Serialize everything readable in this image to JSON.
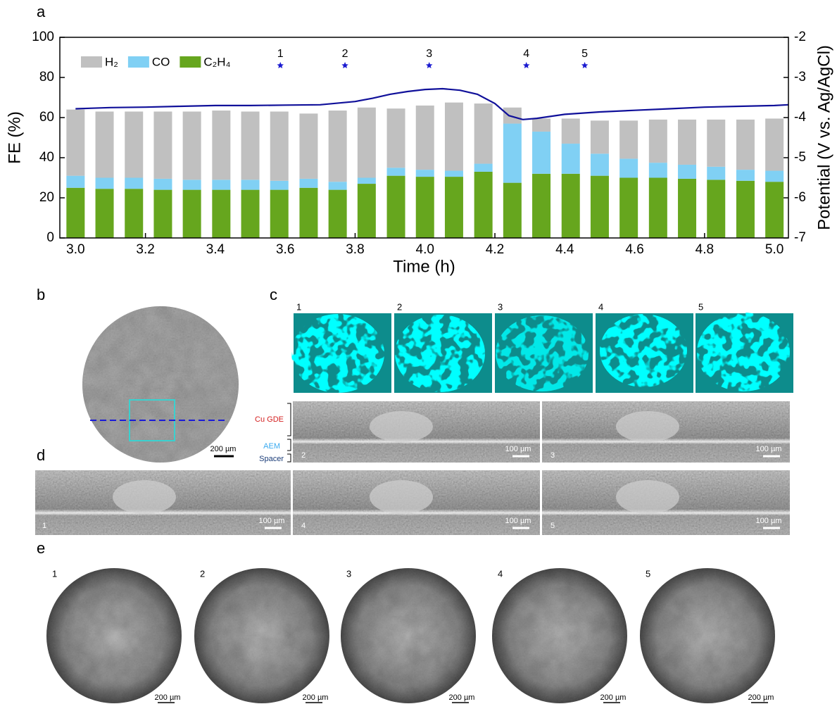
{
  "chart_data": {
    "type": "bar",
    "stacked": true,
    "panel": "a",
    "xlabel": "Time (h)",
    "ylabel": "FE (%)",
    "y2label": "Potential (V vs. Ag/AgCl)",
    "x": [
      3,
      3.083,
      3.167,
      3.25,
      3.333,
      3.417,
      3.5,
      3.583,
      3.667,
      3.75,
      3.833,
      3.917,
      4,
      4.083,
      4.167,
      4.25,
      4.333,
      4.417,
      4.5,
      4.583,
      4.667,
      4.75,
      4.833,
      4.917,
      5
    ],
    "series": [
      {
        "name": "H₂",
        "color": "#c0c0c0",
        "values": [
          33,
          33,
          33,
          33.5,
          34,
          34.5,
          34,
          34.5,
          32.5,
          35.5,
          35,
          29.5,
          32,
          34,
          30,
          8,
          6.5,
          12.5,
          16.5,
          19,
          21.5,
          22.5,
          23.5,
          25,
          26
        ]
      },
      {
        "name": "CO",
        "color": "#80d0f4",
        "values": [
          6,
          5.5,
          5.5,
          5.5,
          5,
          5,
          5,
          4.5,
          4.5,
          4,
          3,
          4,
          3.5,
          3,
          4,
          29.5,
          21,
          15,
          11,
          9.5,
          7.5,
          7,
          6.5,
          5.5,
          5.5
        ]
      },
      {
        "name": "C₂H₄",
        "color": "#66a61e",
        "values": [
          25,
          24.5,
          24.5,
          24,
          24,
          24,
          24,
          24,
          25,
          24,
          27,
          31,
          30.5,
          30.5,
          33,
          27.5,
          32,
          32,
          31,
          30,
          30,
          29.5,
          29,
          28.5,
          28
        ]
      },
      {
        "type": "line",
        "axis": "y2",
        "color": "#10109a",
        "x": [
          3,
          3.1,
          3.2,
          3.3,
          3.4,
          3.5,
          3.6,
          3.7,
          3.8,
          3.85,
          3.9,
          3.95,
          4,
          4.05,
          4.1,
          4.15,
          4.2,
          4.24,
          4.28,
          4.32,
          4.4,
          4.5,
          4.6,
          4.7,
          4.8,
          4.9,
          5,
          5.04
        ],
        "values": [
          -3.78,
          -3.75,
          -3.74,
          -3.72,
          -3.7,
          -3.7,
          -3.69,
          -3.68,
          -3.6,
          -3.52,
          -3.42,
          -3.35,
          -3.3,
          -3.28,
          -3.32,
          -3.42,
          -3.65,
          -3.95,
          -4.05,
          -4.02,
          -3.92,
          -3.86,
          -3.82,
          -3.78,
          -3.74,
          -3.72,
          -3.7,
          -3.68
        ]
      }
    ],
    "annotations": [
      {
        "x": 3.586,
        "label": "1"
      },
      {
        "x": 3.771,
        "label": "2"
      },
      {
        "x": 4.012,
        "label": "3"
      },
      {
        "x": 4.29,
        "label": "4"
      },
      {
        "x": 4.457,
        "label": "5"
      }
    ],
    "annotation_color": "#1a1ad0",
    "xlim": [
      2.955,
      5.04
    ],
    "xticks": [
      {
        "value": 3,
        "label": "3.0"
      },
      {
        "value": 3.2,
        "label": "3.2"
      },
      {
        "value": 3.4,
        "label": "3.4"
      },
      {
        "value": 3.6,
        "label": "3.6"
      },
      {
        "value": 3.8,
        "label": "3.8"
      },
      {
        "value": 4,
        "label": "4.0"
      },
      {
        "value": 4.2,
        "label": "4.2"
      },
      {
        "value": 4.4,
        "label": "4.4"
      },
      {
        "value": 4.6,
        "label": "4.6"
      },
      {
        "value": 4.8,
        "label": "4.8"
      },
      {
        "value": 5,
        "label": "5.0"
      }
    ],
    "ylim": [
      0,
      100
    ],
    "yticks": [
      0,
      20,
      40,
      60,
      80,
      100
    ],
    "y2lim": [
      -7,
      -2
    ],
    "y2ticks": [
      -7,
      -6,
      -5,
      -4,
      -3,
      -2
    ],
    "grid": false,
    "legend": "top-left"
  },
  "panels": {
    "b": {
      "label": "b",
      "scale": "200 µm"
    },
    "c": {
      "label": "c",
      "images": [
        "1",
        "2",
        "3",
        "4",
        "5"
      ],
      "layers": [
        "Cu GDE",
        "AEM",
        "Spacer"
      ],
      "sections": [
        {
          "number": "2",
          "scale": "100 µm"
        },
        {
          "number": "3",
          "scale": "100 µm"
        }
      ]
    },
    "d": {
      "label": "d",
      "sections": [
        {
          "number": "1",
          "scale": "100 µm"
        },
        {
          "number": "4",
          "scale": "100 µm"
        },
        {
          "number": "5",
          "scale": "100 µm"
        }
      ]
    },
    "e": {
      "label": "e",
      "images": [
        {
          "number": "1",
          "scale": "200 µm"
        },
        {
          "number": "2",
          "scale": "200 µm"
        },
        {
          "number": "3",
          "scale": "200 µm"
        },
        {
          "number": "4",
          "scale": "200 µm"
        },
        {
          "number": "5",
          "scale": "200 µm"
        }
      ]
    }
  }
}
